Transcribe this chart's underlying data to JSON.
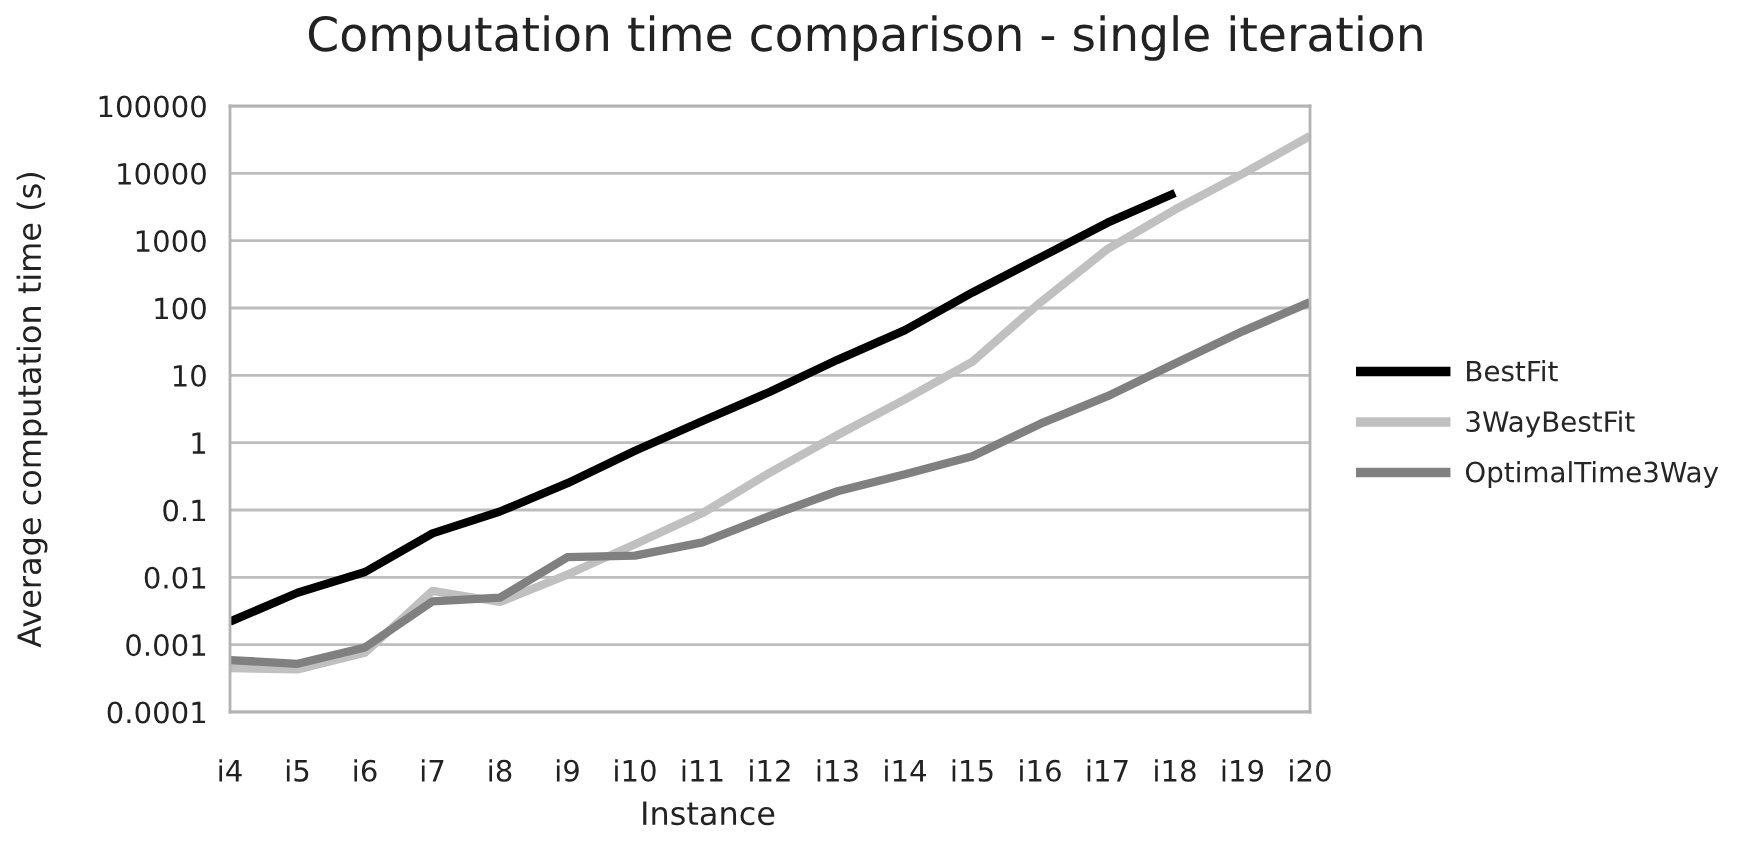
{
  "chart_data": {
    "type": "line",
    "title": "Computation time comparison - single iteration",
    "xlabel": "Instance",
    "ylabel": "Average computation time (s)",
    "categories": [
      "i4",
      "i5",
      "i6",
      "i7",
      "i8",
      "i9",
      "i10",
      "i11",
      "i12",
      "i13",
      "i14",
      "i15",
      "i16",
      "i17",
      "i18",
      "i19",
      "i20"
    ],
    "series": [
      {
        "name": "BestFit",
        "color": "#000000",
        "values": [
          0.0022,
          0.0059,
          0.012,
          0.045,
          0.095,
          0.25,
          0.76,
          2.1,
          5.7,
          17,
          47,
          170,
          560,
          1850,
          5100,
          null,
          null
        ]
      },
      {
        "name": "3WayBestFit",
        "color": "#c0c0c0",
        "values": [
          0.00045,
          0.00043,
          0.00076,
          0.0063,
          0.0043,
          0.011,
          0.031,
          0.09,
          0.36,
          1.3,
          4.4,
          16,
          120,
          750,
          2900,
          9800,
          36000
        ]
      },
      {
        "name": "OptimalTime3Way",
        "color": "#808080",
        "values": [
          0.00059,
          0.00052,
          0.00091,
          0.0044,
          0.005,
          0.02,
          0.021,
          0.033,
          0.082,
          0.19,
          0.34,
          0.63,
          1.9,
          4.9,
          15,
          45,
          122
        ]
      }
    ],
    "log": "y",
    "ylim": [
      0.0001,
      100000
    ],
    "yticks": [
      100000,
      10000,
      1000,
      100,
      10,
      1,
      0.1,
      0.01,
      0.001,
      0.0001
    ],
    "grid": "y",
    "legend": "right",
    "marker": "none",
    "line_style": "solid"
  }
}
